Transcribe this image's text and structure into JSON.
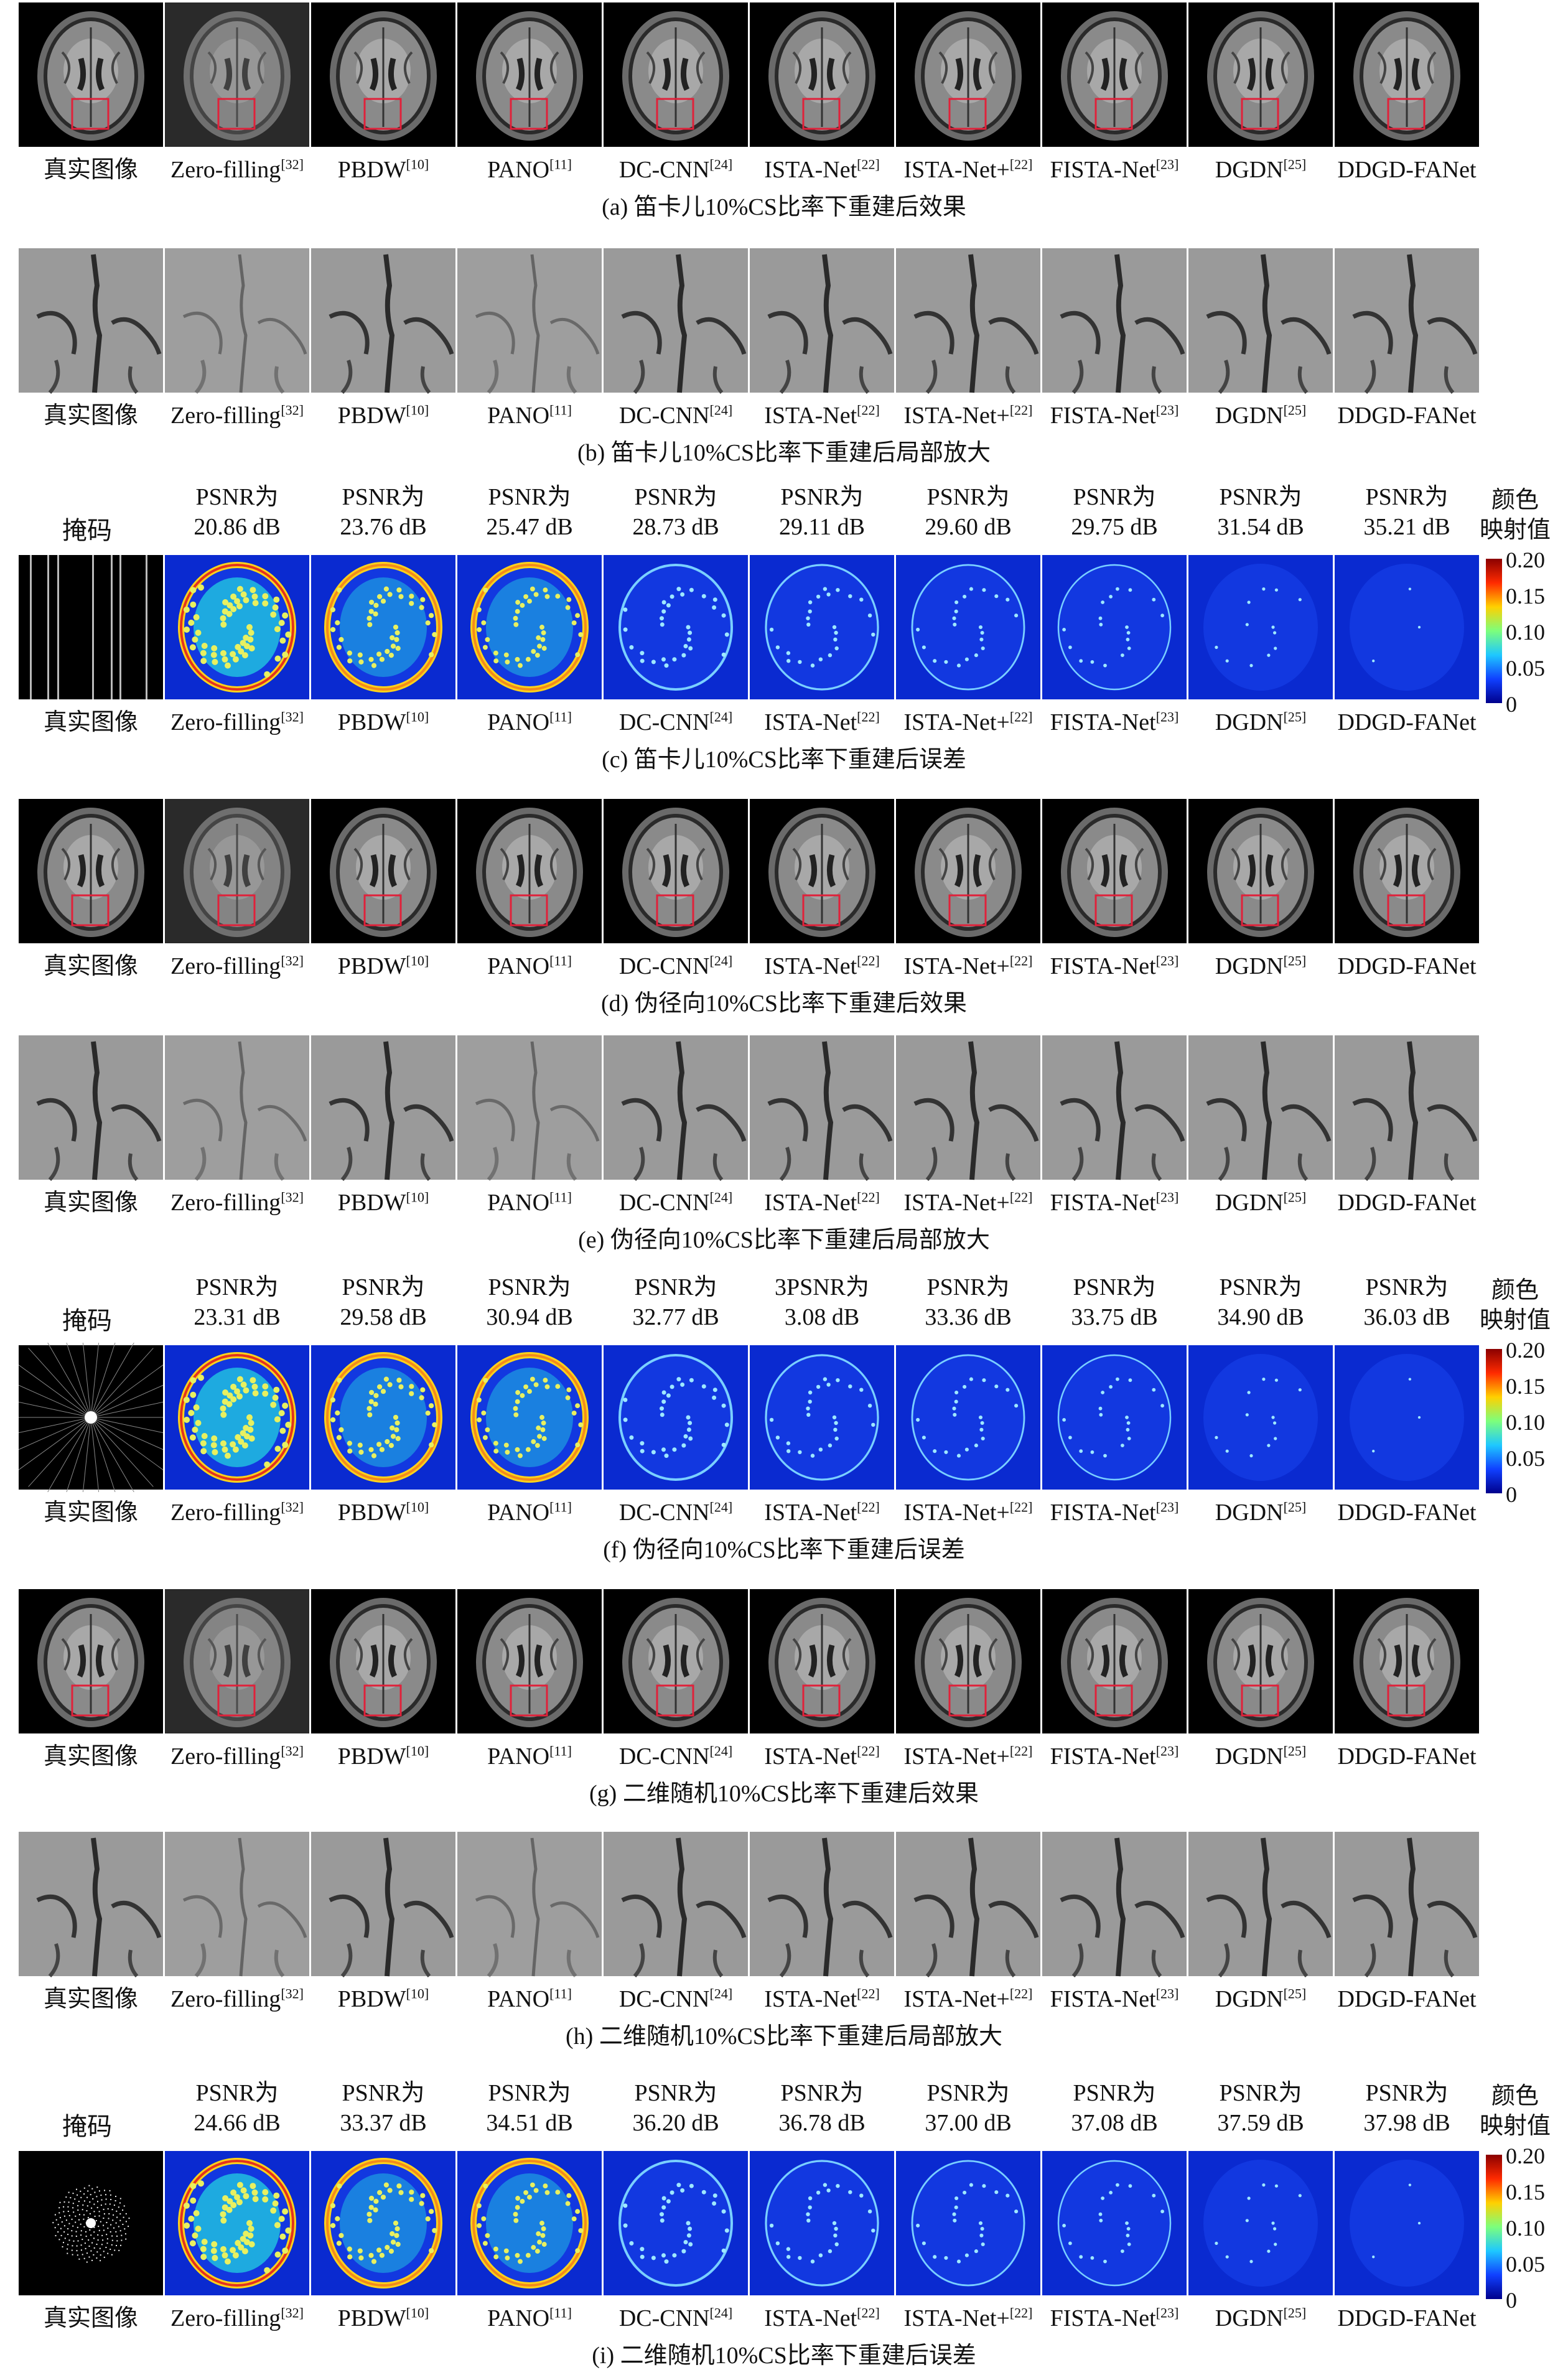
{
  "methods": [
    "真实图像",
    "Zero-filling",
    "PBDW",
    "PANO",
    "DC-CNN",
    "ISTA-Net",
    "ISTA-Net+",
    "FISTA-Net",
    "DGDN",
    "DDGD-FANet"
  ],
  "method_refs": [
    "",
    "[32]",
    "[10]",
    "[11]",
    "[24]",
    "[22]",
    "[22]",
    "[23]",
    "[25]",
    ""
  ],
  "mask_label": "掩码",
  "psnr_prefix": "PSNR为",
  "colorbar": {
    "title_line1": "颜色",
    "title_line2": "映射值",
    "ticks": [
      "0.20",
      "0.15",
      "0.10",
      "0.05",
      "0"
    ]
  },
  "panels": [
    {
      "id": "a",
      "kind": "recon",
      "caption": "(a) 笛卡儿10%CS比率下重建后效果"
    },
    {
      "id": "b",
      "kind": "zoom",
      "caption": "(b) 笛卡儿10%CS比率下重建后局部放大"
    },
    {
      "id": "c",
      "kind": "error",
      "caption": "(c) 笛卡儿10%CS比率下重建后误差",
      "mask": "cartesian",
      "psnr": [
        "20.86 dB",
        "23.76 dB",
        "25.47 dB",
        "28.73 dB",
        "29.11 dB",
        "29.60 dB",
        "29.75 dB",
        "31.54 dB",
        "35.21 dB"
      ],
      "psnr_first_line": [
        "PSNR为",
        "PSNR为",
        "PSNR为",
        "PSNR为",
        "PSNR为",
        "PSNR为",
        "PSNR为",
        "PSNR为",
        "PSNR为"
      ]
    },
    {
      "id": "d",
      "kind": "recon",
      "caption": "(d) 伪径向10%CS比率下重建后效果"
    },
    {
      "id": "e",
      "kind": "zoom",
      "caption": "(e) 伪径向10%CS比率下重建后局部放大"
    },
    {
      "id": "f",
      "kind": "error",
      "caption": "(f) 伪径向10%CS比率下重建后误差",
      "mask": "radial",
      "psnr": [
        "23.31 dB",
        "29.58 dB",
        "30.94 dB",
        "32.77 dB",
        "3.08 dB",
        "33.36 dB",
        "33.75 dB",
        "34.90 dB",
        "36.03 dB"
      ],
      "psnr_first_line": [
        "PSNR为",
        "PSNR为",
        "PSNR为",
        "PSNR为",
        "3PSNR为",
        "PSNR为",
        "PSNR为",
        "PSNR为",
        "PSNR为"
      ]
    },
    {
      "id": "g",
      "kind": "recon",
      "caption": "(g) 二维随机10%CS比率下重建后效果"
    },
    {
      "id": "h",
      "kind": "zoom",
      "caption": "(h) 二维随机10%CS比率下重建后局部放大"
    },
    {
      "id": "i",
      "kind": "error",
      "caption": "(i) 二维随机10%CS比率下重建后误差",
      "mask": "random",
      "psnr": [
        "24.66 dB",
        "33.37 dB",
        "34.51 dB",
        "36.20 dB",
        "36.78 dB",
        "37.00 dB",
        "37.08 dB",
        "37.59 dB",
        "37.98 dB"
      ],
      "psnr_first_line": [
        "PSNR为",
        "PSNR为",
        "PSNR为",
        "PSNR为",
        "PSNR为",
        "PSNR为",
        "PSNR为",
        "PSNR为",
        "PSNR为"
      ]
    }
  ]
}
